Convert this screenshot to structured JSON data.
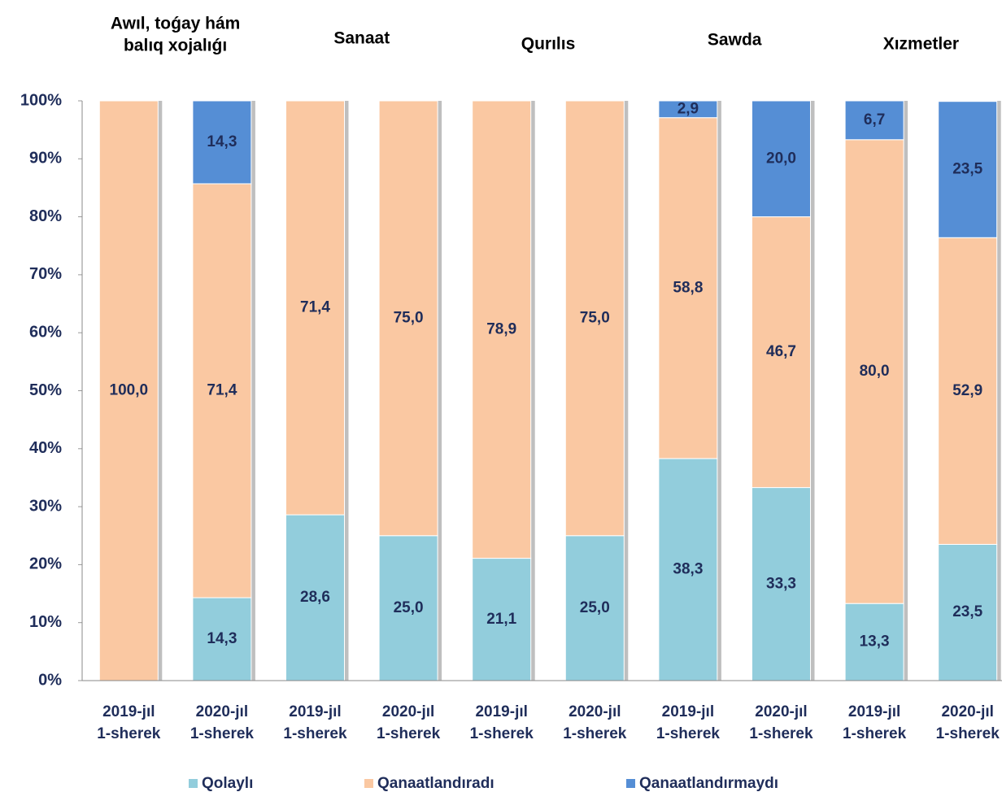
{
  "chart_data": {
    "type": "bar",
    "stacked": true,
    "group_labels": [
      [
        "Awıl, toǵay hám",
        "balıq xojalıǵı"
      ],
      [
        "Sanaat"
      ],
      [
        "Qurılıs"
      ],
      [
        "Sawda"
      ],
      [
        "Xızmetler"
      ]
    ],
    "categories": [
      [
        "2019-jıl",
        "1-sherek"
      ],
      [
        "2020-jıl",
        "1-sherek"
      ],
      [
        "2019-jıl",
        "1-sherek"
      ],
      [
        "2020-jıl",
        "1-sherek"
      ],
      [
        "2019-jıl",
        "1-sherek"
      ],
      [
        "2020-jıl",
        "1-sherek"
      ],
      [
        "2019-jıl",
        "1-sherek"
      ],
      [
        "2020-jıl",
        "1-sherek"
      ],
      [
        "2019-jıl",
        "1-sherek"
      ],
      [
        "2020-jıl",
        "1-sherek"
      ]
    ],
    "series": [
      {
        "name": "Qolaylı",
        "color": "#92cddc",
        "values": [
          0,
          14.3,
          28.6,
          25.0,
          21.1,
          25.0,
          38.3,
          33.3,
          13.3,
          23.5
        ],
        "value_labels": [
          null,
          "14,3",
          "28,6",
          "25,0",
          "21,1",
          "25,0",
          "38,3",
          "33,3",
          "13,3",
          "23,5"
        ]
      },
      {
        "name": "Qanaatlandıradı",
        "color": "#fac8a2",
        "values": [
          100,
          71.4,
          71.4,
          75.0,
          78.9,
          75.0,
          58.8,
          46.7,
          80.0,
          52.9
        ],
        "value_labels": [
          "100,0",
          "71,4",
          "71,4",
          "75,0",
          "78,9",
          "75,0",
          "58,8",
          "46,7",
          "80,0",
          "52,9"
        ]
      },
      {
        "name": "Qanaatlandırmaydı",
        "color": "#558ed5",
        "values": [
          0,
          14.3,
          0,
          0,
          0,
          0,
          2.9,
          20.0,
          6.7,
          23.5
        ],
        "value_labels": [
          null,
          "14,3",
          null,
          null,
          null,
          null,
          "2,9",
          "20,0",
          "6,7",
          "23,5"
        ]
      }
    ],
    "ylim": [
      0,
      100
    ],
    "yticks": [
      {
        "value": 0,
        "label": "0%"
      },
      {
        "value": 10,
        "label": "10%"
      },
      {
        "value": 20,
        "label": "20%"
      },
      {
        "value": 30,
        "label": "30%"
      },
      {
        "value": 40,
        "label": "40%"
      },
      {
        "value": 50,
        "label": "50%"
      },
      {
        "value": 60,
        "label": "60%"
      },
      {
        "value": 70,
        "label": "70%"
      },
      {
        "value": 80,
        "label": "80%"
      },
      {
        "value": 90,
        "label": "90%"
      },
      {
        "value": 100,
        "label": "100%"
      }
    ],
    "grid": false,
    "legend": "bottom"
  }
}
